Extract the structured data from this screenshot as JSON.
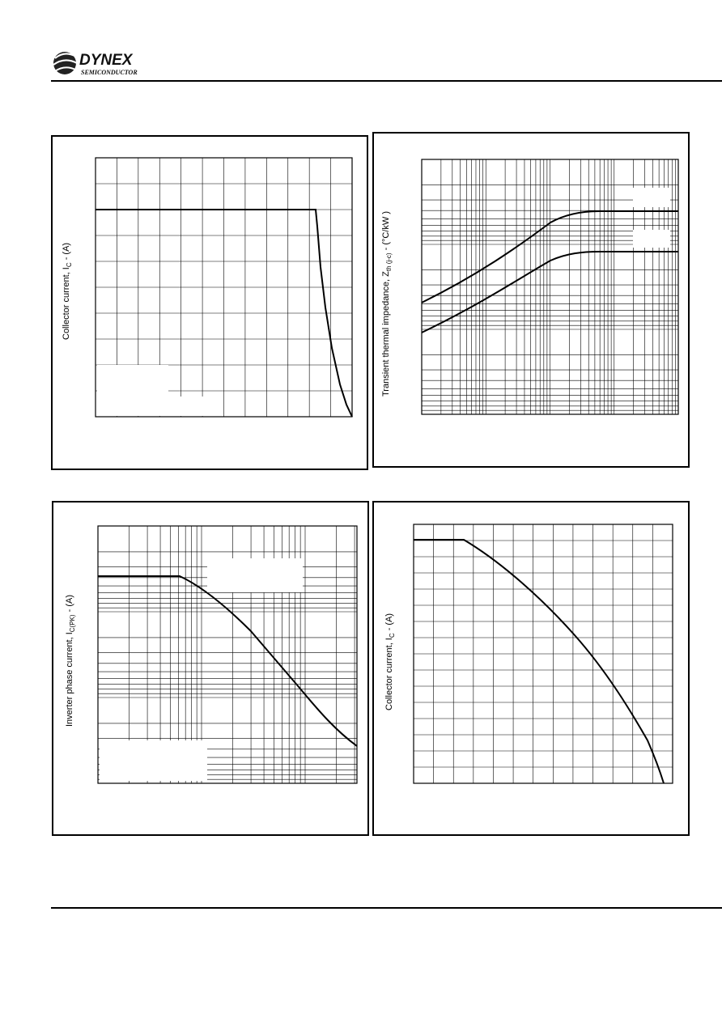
{
  "header": {
    "logo": "DYNEX",
    "logo_subtitle": "SEMICONDUCTOR"
  },
  "panels": [
    {
      "ylabel": {
        "text": "Collector current, I",
        "sub": "C",
        "suffix": " - (A)"
      }
    },
    {
      "ylabel": {
        "text": "Transient thermal impedance, Z",
        "sub": "th (j-c)",
        "suffix": " - (°C/kW )"
      }
    },
    {
      "ylabel": {
        "text": "Inverter phase current, I",
        "sub": "C(PK)",
        "suffix": " - (A)"
      }
    },
    {
      "ylabel": {
        "text": "Collector current, I",
        "sub": "C",
        "suffix": " - (A)"
      }
    }
  ]
}
